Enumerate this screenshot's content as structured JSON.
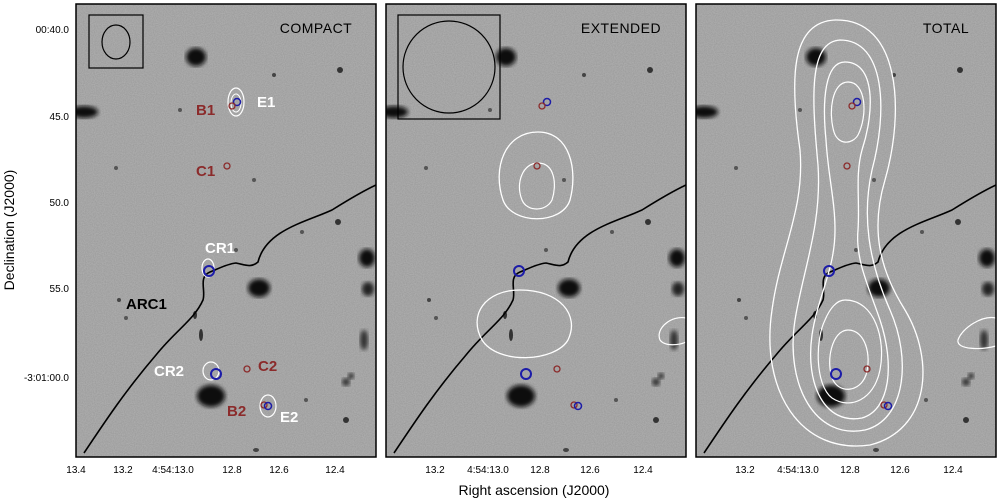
{
  "figure": {
    "xlabel": "Right ascension (J2000)",
    "ylabel": "Declination (J2000)",
    "x_ticks": [
      "13.4",
      "13.2",
      "4:54:13.0",
      "12.8",
      "12.6",
      "12.4"
    ],
    "x_ticks_short": [
      "13.2",
      "4:54:13.0",
      "12.8",
      "12.6",
      "12.4"
    ],
    "y_ticks": [
      "00:40.0",
      "45.0",
      "50.0",
      "55.0",
      "-3:01:00.0"
    ]
  },
  "panels": [
    {
      "title": "COMPACT"
    },
    {
      "title": "EXTENDED"
    },
    {
      "title": "TOTAL"
    }
  ],
  "labels": {
    "B1": "B1",
    "E1": "E1",
    "C1": "C1",
    "CR1": "CR1",
    "ARC1": "ARC1",
    "CR2": "CR2",
    "C2": "C2",
    "B2": "B2",
    "E2": "E2"
  },
  "colors": {
    "background": "#9a9a9a",
    "maroon": "#8b2b2b",
    "blue": "#1c1ca8",
    "contour": "#ffffff"
  }
}
